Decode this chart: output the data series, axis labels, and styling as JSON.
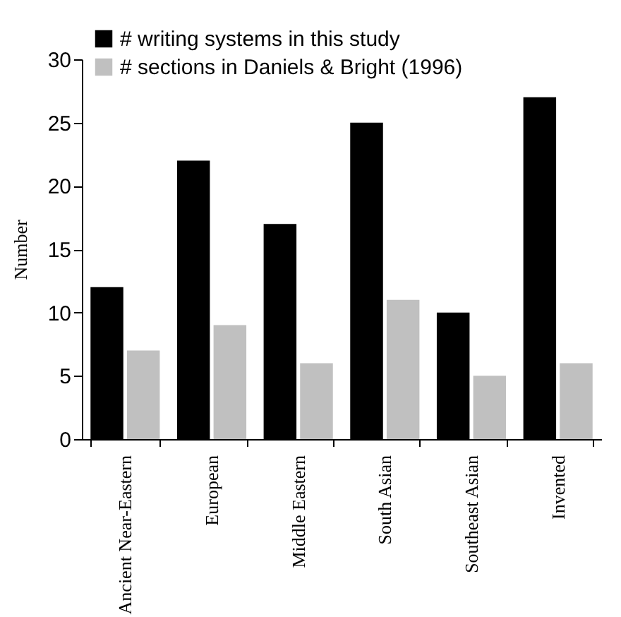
{
  "chart_data": {
    "type": "bar",
    "ylabel": "Number",
    "categories": [
      "Ancient Near-Eastern",
      "European",
      "Middle Eastern",
      "South Asian",
      "Southeast Asian",
      "Invented"
    ],
    "series": [
      {
        "name": "# writing systems in this study",
        "color": "#000000",
        "values": [
          12,
          22,
          17,
          25,
          10,
          27
        ]
      },
      {
        "name": "# sections in Daniels & Bright (1996)",
        "color": "#c0c0c0",
        "values": [
          7,
          9,
          6,
          11,
          5,
          6
        ]
      }
    ],
    "ylim": [
      0,
      30
    ],
    "yticks": [
      0,
      5,
      10,
      15,
      20,
      25,
      30
    ],
    "legend": "top left"
  }
}
